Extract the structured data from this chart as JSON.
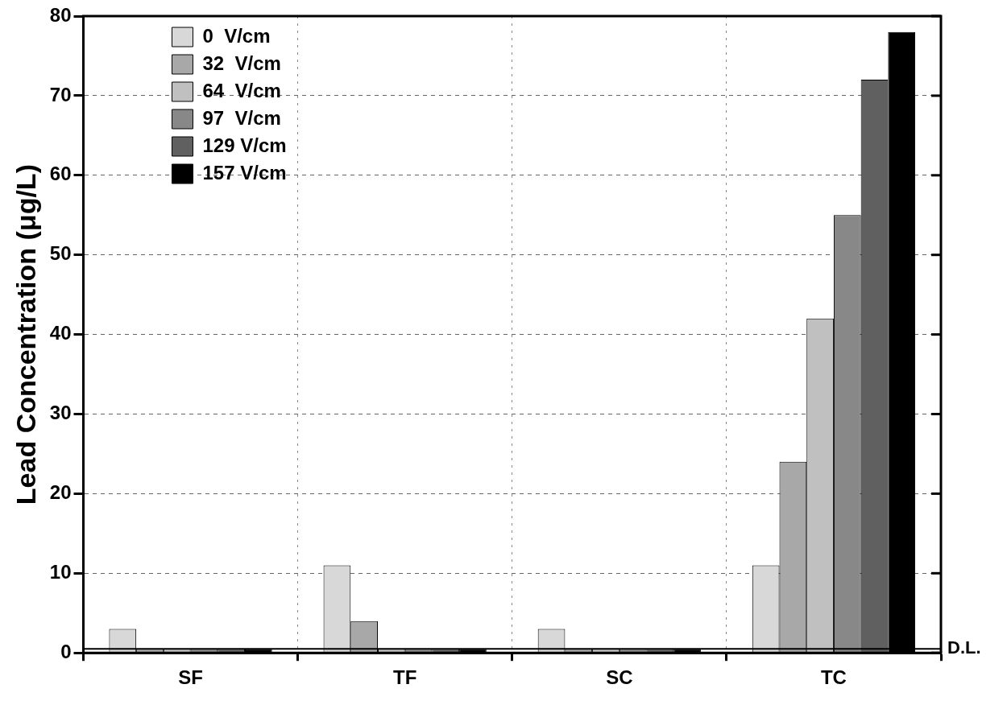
{
  "chart_data": {
    "type": "bar",
    "ylabel": "Lead Concentration (μg/L)",
    "categories": [
      "SF",
      "TF",
      "SC",
      "TC"
    ],
    "series": [
      {
        "name": "0  V/cm",
        "color": "#d8d8d8",
        "values": [
          3,
          11,
          3,
          11
        ]
      },
      {
        "name": "32  V/cm",
        "color": "#a8a8a8",
        "values": [
          0.5,
          4,
          0.5,
          24
        ]
      },
      {
        "name": "64  V/cm",
        "color": "#c0c0c0",
        "values": [
          0.5,
          0.5,
          0.5,
          42
        ]
      },
      {
        "name": "97  V/cm",
        "color": "#888888",
        "values": [
          0.5,
          0.5,
          0.5,
          55
        ]
      },
      {
        "name": "129 V/cm",
        "color": "#606060",
        "values": [
          0.5,
          0.5,
          0.5,
          72
        ]
      },
      {
        "name": "157 V/cm",
        "color": "#000000",
        "values": [
          0.5,
          0.5,
          0.5,
          78
        ]
      }
    ],
    "ylim": [
      0,
      80
    ],
    "yticks": [
      0,
      10,
      20,
      30,
      40,
      50,
      60,
      70,
      80
    ],
    "grid": true,
    "legend": "top left",
    "ref_lines": [
      {
        "axis": "y",
        "value": 0.5,
        "label": "D.L.",
        "color": "#000000"
      }
    ]
  }
}
